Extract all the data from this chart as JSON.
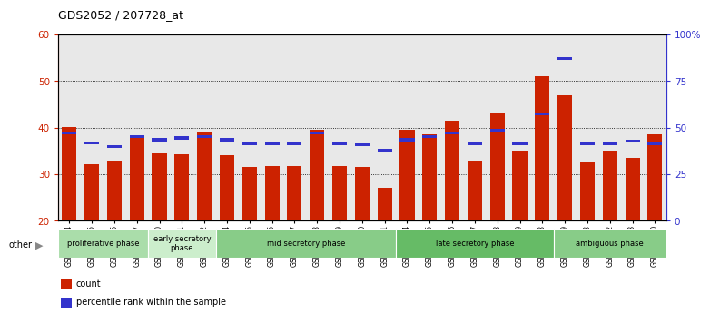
{
  "title": "GDS2052 / 207728_at",
  "samples": [
    "GSM109814",
    "GSM109815",
    "GSM109816",
    "GSM109817",
    "GSM109820",
    "GSM109821",
    "GSM109822",
    "GSM109824",
    "GSM109825",
    "GSM109826",
    "GSM109827",
    "GSM109828",
    "GSM109829",
    "GSM109830",
    "GSM109831",
    "GSM109834",
    "GSM109835",
    "GSM109836",
    "GSM109837",
    "GSM109838",
    "GSM109839",
    "GSM109818",
    "GSM109819",
    "GSM109823",
    "GSM109832",
    "GSM109833",
    "GSM109840"
  ],
  "count_values": [
    40.2,
    32.2,
    33.0,
    38.0,
    34.5,
    34.3,
    39.0,
    34.0,
    31.5,
    31.8,
    31.8,
    39.5,
    31.7,
    31.5,
    27.0,
    39.5,
    38.5,
    41.5,
    33.0,
    43.0,
    35.0,
    51.0,
    47.0,
    32.5,
    35.0,
    33.5,
    38.5
  ],
  "percentile_values": [
    47.0,
    42.0,
    40.0,
    45.0,
    43.5,
    44.5,
    45.0,
    43.5,
    41.5,
    41.5,
    41.5,
    47.0,
    41.5,
    41.0,
    38.0,
    43.5,
    45.0,
    47.0,
    41.5,
    48.5,
    41.5,
    57.5,
    87.0,
    41.5,
    41.5,
    43.0,
    41.5
  ],
  "ylim_left": [
    20,
    60
  ],
  "ylim_right": [
    0,
    100
  ],
  "yticks_left": [
    20,
    30,
    40,
    50,
    60
  ],
  "yticks_right": [
    0,
    25,
    50,
    75,
    100
  ],
  "yticklabels_right": [
    "0",
    "25",
    "50",
    "75",
    "100%"
  ],
  "bar_color": "#CC2200",
  "percentile_color": "#3333CC",
  "plot_bg_color": "#E8E8E8",
  "phases": [
    {
      "label": "proliferative phase",
      "start": 0,
      "end": 4,
      "color": "#AADDAA"
    },
    {
      "label": "early secretory\nphase",
      "start": 4,
      "end": 7,
      "color": "#CCEECC"
    },
    {
      "label": "mid secretory phase",
      "start": 7,
      "end": 15,
      "color": "#88CC88"
    },
    {
      "label": "late secretory phase",
      "start": 15,
      "end": 22,
      "color": "#66BB66"
    },
    {
      "label": "ambiguous phase",
      "start": 22,
      "end": 27,
      "color": "#88CC88"
    }
  ],
  "legend_items": [
    {
      "label": "count",
      "color": "#CC2200"
    },
    {
      "label": "percentile rank within the sample",
      "color": "#3333CC"
    }
  ],
  "axis_color_left": "#CC2200",
  "axis_color_right": "#3333CC",
  "bar_width": 0.65
}
